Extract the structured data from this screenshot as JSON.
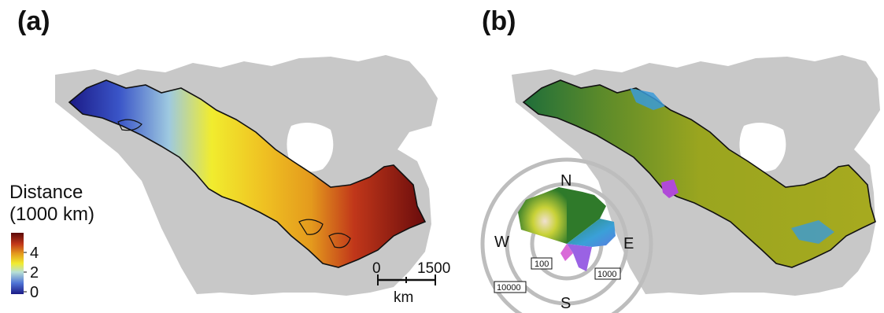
{
  "panels": [
    {
      "label": "(a)"
    },
    {
      "label": "(b)"
    }
  ],
  "legend_a": {
    "title_line1": "Distance",
    "title_line2": "(1000 km)",
    "ticks": [
      "4",
      "2",
      "0"
    ],
    "gradient_colors": [
      "#1b1a86",
      "#4f74d6",
      "#b7e0d6",
      "#f1ec2e",
      "#e49a1d",
      "#c1371a",
      "#5a0808"
    ]
  },
  "scalebar": {
    "start_label": "0",
    "end_label": "1500",
    "unit": "km"
  },
  "compass_b": {
    "directions": {
      "north": "N",
      "south": "S",
      "east": "E",
      "west": "W"
    },
    "ring_labels": [
      "100",
      "1000",
      "10000"
    ]
  },
  "colors": {
    "land": "#c8c8c8",
    "water": "#ffffff",
    "outline": "#111111"
  }
}
